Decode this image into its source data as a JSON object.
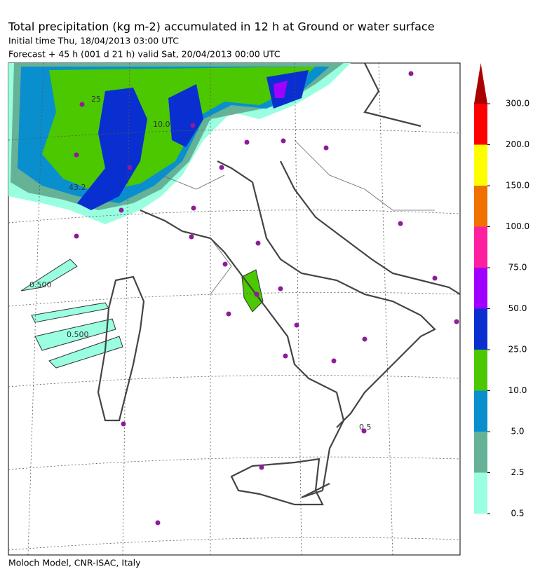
{
  "header": {
    "title": "Total precipitation (kg m-2) accumulated in  12 h at Ground or water surface",
    "initial_time": "Initial time  Thu, 18/04/2013  03:00 UTC",
    "forecast": "Forecast  +  45 h  (001 d 21 h)  valid Sat, 20/04/2013 00:00 UTC"
  },
  "map": {
    "contour_labels": [
      "25",
      "10.0",
      "43.2",
      "0.500",
      "0.500",
      "0.5"
    ]
  },
  "colorbar": {
    "levels": [
      0.5,
      {
        "value": 2.5,
        "label": "2.5"
      },
      {
        "value": 5,
        "label": "5.0"
      },
      {
        "value": 10,
        "label": "10.0"
      },
      {
        "value": 25,
        "label": "25.0"
      },
      {
        "value": 50,
        "label": "50.0"
      },
      {
        "value": 75,
        "label": "75.0"
      },
      {
        "value": 100,
        "label": "100.0"
      },
      {
        "value": 150,
        "label": "150.0"
      },
      {
        "value": 200,
        "label": "200.0"
      },
      {
        "value": 300,
        "label": "300.0"
      }
    ],
    "colors": [
      "#99ffe0",
      "#66b296",
      "#0a8fce",
      "#4cc800",
      "#0a2fd0",
      "#a000ff",
      "#ff20a0",
      "#f07000",
      "#ffff00",
      "#ff0000",
      "#aa0000"
    ]
  },
  "footer": {
    "credit": "Moloch Model, CNR-ISAC, Italy"
  }
}
